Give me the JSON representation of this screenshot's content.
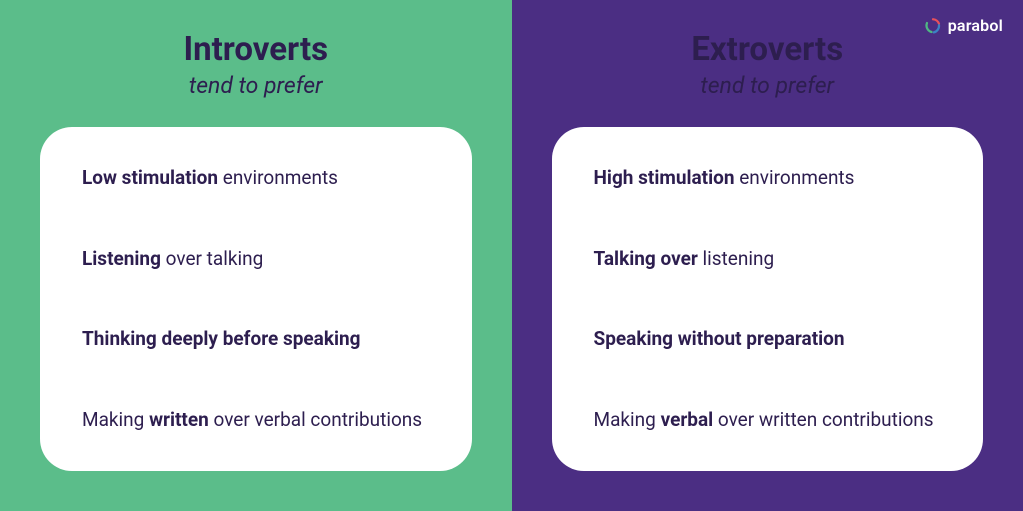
{
  "colors": {
    "left_bg": "#5bbd8a",
    "right_bg": "#4b2e83",
    "card_bg": "#ffffff",
    "text_dark": "#2d1e4f",
    "logo_red": "#e8505b",
    "logo_blue": "#3b82c4",
    "logo_green": "#4fb783"
  },
  "typography": {
    "title_fontsize": 33,
    "subtitle_fontsize": 23,
    "item_fontsize": 19,
    "card_border_radius": 32
  },
  "brand": {
    "name": "parabol"
  },
  "panels": {
    "left": {
      "title": "Introverts",
      "subtitle": "tend to prefer",
      "items": [
        {
          "segments": [
            {
              "text": "Low stimulation",
              "bold": true
            },
            {
              "text": " environments",
              "bold": false
            }
          ]
        },
        {
          "segments": [
            {
              "text": "Listening",
              "bold": true
            },
            {
              "text": " over talking",
              "bold": false
            }
          ]
        },
        {
          "segments": [
            {
              "text": "Thinking deeply before speaking",
              "bold": true
            }
          ]
        },
        {
          "segments": [
            {
              "text": "Making ",
              "bold": false
            },
            {
              "text": "written",
              "bold": true
            },
            {
              "text": " over verbal contributions",
              "bold": false
            }
          ]
        }
      ]
    },
    "right": {
      "title": "Extroverts",
      "subtitle": "tend to prefer",
      "items": [
        {
          "segments": [
            {
              "text": "High stimulation",
              "bold": true
            },
            {
              "text": " environments",
              "bold": false
            }
          ]
        },
        {
          "segments": [
            {
              "text": "Talking over",
              "bold": true
            },
            {
              "text": " listening",
              "bold": false
            }
          ]
        },
        {
          "segments": [
            {
              "text": "Speaking without preparation",
              "bold": true
            }
          ]
        },
        {
          "segments": [
            {
              "text": "Making ",
              "bold": false
            },
            {
              "text": "verbal",
              "bold": true
            },
            {
              "text": " over written contributions",
              "bold": false
            }
          ]
        }
      ]
    }
  }
}
